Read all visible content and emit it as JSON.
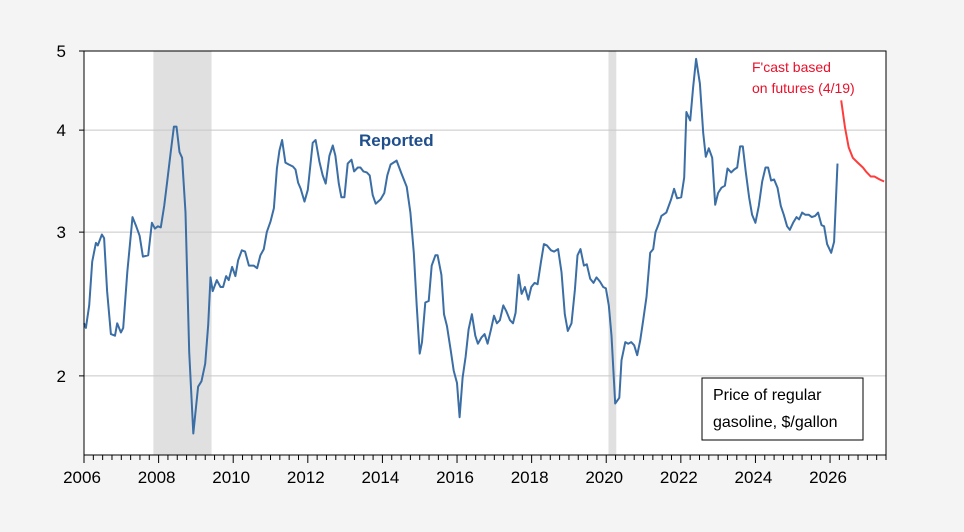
{
  "chart_data": {
    "type": "line",
    "title": "",
    "xlabel": "",
    "ylabel": "",
    "y_scale": "log",
    "xlim": [
      2006,
      2027.5
    ],
    "ylim": [
      1.6,
      5
    ],
    "grid": "horizontal",
    "x_ticks": [
      2006,
      2008,
      2010,
      2012,
      2014,
      2016,
      2018,
      2020,
      2022,
      2024,
      2026
    ],
    "x_tick_labels": [
      "2006",
      "2008",
      "2010",
      "2012",
      "2014",
      "2016",
      "2018",
      "2020",
      "2022",
      "2024",
      "2026"
    ],
    "y_ticks": [
      2,
      3,
      4,
      5
    ],
    "y_tick_labels": [
      "2",
      "3",
      "4",
      "5"
    ],
    "recessions": [
      [
        2007.86,
        2009.42
      ],
      [
        2020.06,
        2020.27
      ]
    ],
    "legend_box": {
      "line1": "Price of regular",
      "line2": "gasoline, $/gallon",
      "placement": "bottom-right"
    },
    "colors": {
      "reported": "#3b6ea5",
      "forecast": "#ff3b3b",
      "recession": "#e0e0e0",
      "reported_label": "#1f4e8c",
      "forecast_label": "#e8102a"
    },
    "series": [
      {
        "name": "Reported",
        "x": [
          2006.0,
          2006.05,
          2006.14,
          2006.22,
          2006.32,
          2006.37,
          2006.48,
          2006.54,
          2006.62,
          2006.72,
          2006.83,
          2006.89,
          2006.99,
          2007.05,
          2007.16,
          2007.3,
          2007.4,
          2007.49,
          2007.58,
          2007.72,
          2007.82,
          2007.9,
          2007.98,
          2008.06,
          2008.15,
          2008.23,
          2008.32,
          2008.41,
          2008.48,
          2008.56,
          2008.63,
          2008.72,
          2008.82,
          2008.93,
          2009.06,
          2009.15,
          2009.25,
          2009.33,
          2009.39,
          2009.45,
          2009.56,
          2009.66,
          2009.73,
          2009.81,
          2009.88,
          2009.97,
          2010.06,
          2010.13,
          2010.23,
          2010.32,
          2010.42,
          2010.55,
          2010.64,
          2010.73,
          2010.82,
          2010.9,
          2011.0,
          2011.09,
          2011.17,
          2011.24,
          2011.31,
          2011.4,
          2011.49,
          2011.6,
          2011.67,
          2011.74,
          2011.81,
          2011.91,
          2012.0,
          2012.13,
          2012.21,
          2012.31,
          2012.4,
          2012.48,
          2012.58,
          2012.67,
          2012.74,
          2012.83,
          2012.9,
          2012.98,
          2013.07,
          2013.17,
          2013.24,
          2013.34,
          2013.41,
          2013.49,
          2013.58,
          2013.66,
          2013.74,
          2013.82,
          2013.95,
          2014.05,
          2014.13,
          2014.22,
          2014.38,
          2014.51,
          2014.65,
          2014.75,
          2014.84,
          2014.92,
          2015.0,
          2015.06,
          2015.15,
          2015.24,
          2015.32,
          2015.42,
          2015.48,
          2015.58,
          2015.65,
          2015.73,
          2015.83,
          2015.91,
          2016.0,
          2016.07,
          2016.15,
          2016.23,
          2016.31,
          2016.4,
          2016.49,
          2016.56,
          2016.66,
          2016.74,
          2016.82,
          2016.91,
          2016.99,
          2017.07,
          2017.15,
          2017.24,
          2017.32,
          2017.42,
          2017.5,
          2017.57,
          2017.65,
          2017.73,
          2017.82,
          2017.91,
          2017.99,
          2018.08,
          2018.16,
          2018.25,
          2018.33,
          2018.41,
          2018.52,
          2018.6,
          2018.71,
          2018.8,
          2018.89,
          2018.97,
          2019.07,
          2019.16,
          2019.23,
          2019.31,
          2019.4,
          2019.48,
          2019.57,
          2019.66,
          2019.74,
          2019.83,
          2019.92,
          2019.99,
          2020.07,
          2020.14,
          2020.24,
          2020.35,
          2020.41,
          2020.51,
          2020.59,
          2020.67,
          2020.75,
          2020.83,
          2020.91,
          2020.99,
          2021.08,
          2021.18,
          2021.26,
          2021.32,
          2021.42,
          2021.48,
          2021.61,
          2021.74,
          2021.82,
          2021.9,
          2022.01,
          2022.09,
          2022.15,
          2022.25,
          2022.33,
          2022.41,
          2022.51,
          2022.6,
          2022.67,
          2022.75,
          2022.84,
          2022.92,
          2023.0,
          2023.09,
          2023.18,
          2023.25,
          2023.35,
          2023.43,
          2023.51,
          2023.59,
          2023.66,
          2023.74,
          2023.83,
          2023.91,
          2024.0,
          2024.09,
          2024.18,
          2024.27,
          2024.34,
          2024.42,
          2024.5,
          2024.59,
          2024.68,
          2024.76,
          2024.85,
          2024.92,
          2025.01,
          2025.1,
          2025.17,
          2025.25,
          2025.34,
          2025.43,
          2025.51,
          2025.6,
          2025.68,
          2025.77,
          2025.84,
          2025.92,
          2026.03,
          2026.11,
          2026.2
        ],
        "values": [
          2.32,
          2.29,
          2.44,
          2.76,
          2.91,
          2.89,
          2.98,
          2.95,
          2.54,
          2.25,
          2.24,
          2.32,
          2.26,
          2.29,
          2.68,
          3.13,
          3.05,
          2.97,
          2.8,
          2.81,
          3.08,
          3.03,
          3.05,
          3.04,
          3.23,
          3.46,
          3.74,
          4.04,
          4.04,
          3.76,
          3.7,
          3.17,
          2.14,
          1.7,
          1.94,
          1.97,
          2.07,
          2.31,
          2.64,
          2.54,
          2.62,
          2.57,
          2.57,
          2.65,
          2.62,
          2.72,
          2.65,
          2.77,
          2.85,
          2.84,
          2.73,
          2.73,
          2.71,
          2.81,
          2.86,
          3.0,
          3.09,
          3.21,
          3.59,
          3.78,
          3.89,
          3.65,
          3.63,
          3.61,
          3.58,
          3.45,
          3.39,
          3.27,
          3.38,
          3.86,
          3.89,
          3.66,
          3.52,
          3.44,
          3.72,
          3.83,
          3.72,
          3.44,
          3.31,
          3.31,
          3.64,
          3.68,
          3.56,
          3.6,
          3.6,
          3.56,
          3.55,
          3.52,
          3.33,
          3.25,
          3.29,
          3.35,
          3.52,
          3.63,
          3.67,
          3.54,
          3.41,
          3.17,
          2.83,
          2.44,
          2.13,
          2.2,
          2.46,
          2.47,
          2.73,
          2.81,
          2.81,
          2.66,
          2.38,
          2.3,
          2.15,
          2.03,
          1.96,
          1.78,
          1.99,
          2.11,
          2.28,
          2.38,
          2.24,
          2.19,
          2.23,
          2.25,
          2.19,
          2.28,
          2.37,
          2.32,
          2.34,
          2.44,
          2.4,
          2.34,
          2.32,
          2.39,
          2.66,
          2.52,
          2.57,
          2.48,
          2.57,
          2.6,
          2.59,
          2.76,
          2.9,
          2.89,
          2.85,
          2.84,
          2.86,
          2.68,
          2.38,
          2.27,
          2.32,
          2.55,
          2.81,
          2.86,
          2.73,
          2.74,
          2.63,
          2.6,
          2.64,
          2.61,
          2.57,
          2.56,
          2.44,
          2.24,
          1.85,
          1.88,
          2.09,
          2.2,
          2.19,
          2.2,
          2.18,
          2.12,
          2.21,
          2.34,
          2.5,
          2.83,
          2.86,
          3.0,
          3.08,
          3.14,
          3.17,
          3.29,
          3.39,
          3.3,
          3.31,
          3.5,
          4.21,
          4.11,
          4.51,
          4.89,
          4.56,
          3.97,
          3.71,
          3.8,
          3.7,
          3.24,
          3.35,
          3.4,
          3.42,
          3.59,
          3.55,
          3.58,
          3.6,
          3.82,
          3.82,
          3.56,
          3.31,
          3.15,
          3.08,
          3.23,
          3.46,
          3.6,
          3.6,
          3.47,
          3.48,
          3.4,
          3.23,
          3.15,
          3.05,
          3.02,
          3.08,
          3.13,
          3.11,
          3.17,
          3.15,
          3.15,
          3.13,
          3.14,
          3.17,
          3.06,
          3.05,
          2.9,
          2.83,
          2.92,
          3.64
        ]
      },
      {
        "name": "F'cast based on futures (4/19)",
        "x": [
          2026.3,
          2026.4,
          2026.5,
          2026.61,
          2026.74,
          2026.88,
          2026.96,
          2027.09,
          2027.19,
          2027.33,
          2027.45
        ],
        "values": [
          4.35,
          4.03,
          3.81,
          3.7,
          3.65,
          3.6,
          3.56,
          3.51,
          3.51,
          3.48,
          3.46
        ]
      }
    ],
    "annotations": {
      "reported": "Reported",
      "forecast_line1": "F'cast based",
      "forecast_line2": "on futures (4/19)"
    }
  }
}
